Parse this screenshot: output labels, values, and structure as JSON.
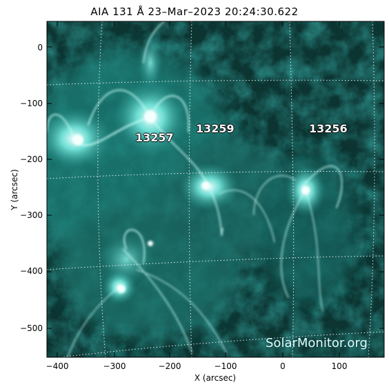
{
  "image": {
    "title": "AIA 131 Å 23–Mar–2023 20:24:30.622",
    "y_axis_label": "Y (arcsec)",
    "x_axis_label": "X (arcsec)",
    "y_ticks": [
      "0",
      "−100",
      "−200",
      "−300",
      "−400",
      "−500"
    ],
    "x_ticks": [
      "−400",
      "−300",
      "−200",
      "−100",
      "0",
      "100"
    ],
    "x_range_arcsec": [
      -425,
      178
    ],
    "y_range_arcsec": [
      45,
      -555
    ],
    "active_regions": [
      {
        "label": "13257",
        "x": -210,
        "y": -165
      },
      {
        "label": "13259",
        "x": -125,
        "y": -150
      },
      {
        "label": "13256",
        "x": 78,
        "y": -148
      }
    ],
    "credit": "SolarMonitor.org",
    "colors": {
      "background": "#ffffff",
      "image_dark": "#0a2f2c",
      "image_mid": "#1f8f87",
      "image_bright": "#d8fffb",
      "grid": "#ffffff"
    }
  }
}
